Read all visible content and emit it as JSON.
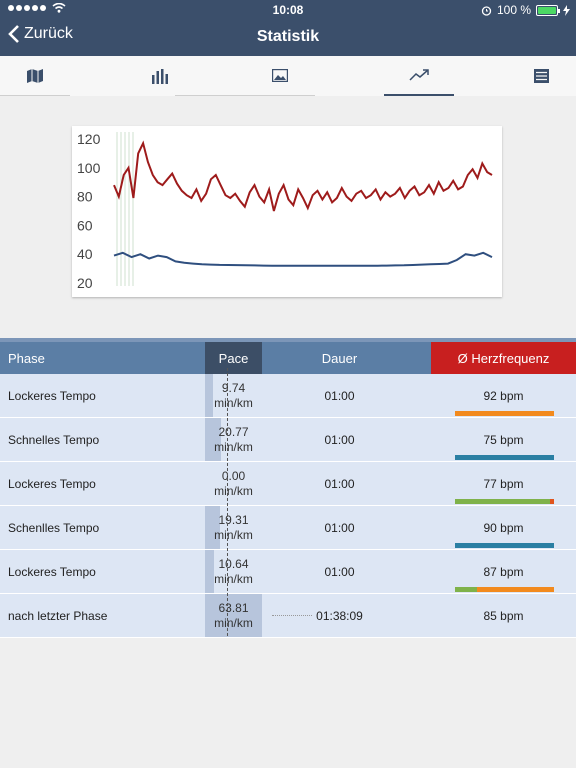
{
  "status_bar": {
    "time": "10:08",
    "battery": "100 %"
  },
  "nav": {
    "back_label": "Zurück",
    "title": "Statistik"
  },
  "tabs": [
    {
      "icon": "map-icon"
    },
    {
      "icon": "bar-chart-icon"
    },
    {
      "icon": "image-icon"
    },
    {
      "icon": "trend-line-icon",
      "active": true
    },
    {
      "icon": "list-icon"
    }
  ],
  "chart_data": {
    "type": "line",
    "y_ticks": [
      "120",
      "100",
      "80",
      "60",
      "40",
      "20"
    ],
    "ylim": [
      20,
      120
    ],
    "series": [
      {
        "color": "#9e1b1b",
        "values": [
          88,
          80,
          95,
          100,
          79,
          110,
          117,
          104,
          95,
          90,
          88,
          92,
          96,
          89,
          84,
          81,
          79,
          85,
          77,
          82,
          92,
          95,
          88,
          81,
          79,
          82,
          77,
          73,
          83,
          88,
          80,
          76,
          85,
          70,
          82,
          88,
          78,
          74,
          85,
          79,
          72,
          81,
          84,
          78,
          83,
          76,
          79,
          86,
          80,
          77,
          82,
          84,
          79,
          81,
          85,
          78,
          83,
          80,
          82,
          86,
          79,
          84,
          87,
          81,
          83,
          88,
          82,
          90,
          84,
          86,
          91,
          85,
          87,
          95,
          99,
          93,
          103,
          97,
          95
        ]
      },
      {
        "color": "#2f4f7f",
        "values": [
          39,
          41,
          38,
          40,
          37,
          39,
          38,
          35,
          34,
          33.5,
          33,
          32.8,
          32.6,
          32.5,
          32.4,
          32.3,
          32.2,
          32.1,
          32,
          32,
          32,
          32,
          32,
          32,
          32,
          32,
          32,
          32,
          32,
          32,
          32,
          32.1,
          32.2,
          32.3,
          32.5,
          32.8,
          33,
          33.2,
          33.5,
          36,
          40,
          39,
          41,
          38
        ]
      }
    ]
  },
  "table": {
    "headers": {
      "phase": "Phase",
      "pace": "Pace",
      "dauer": "Dauer",
      "hr": "Ø Herzfrequenz"
    },
    "rows": [
      {
        "phase": "Lockeres Tempo",
        "pace_value": "9.74",
        "pace_unit": "min/km",
        "pace_fill": 0.14,
        "dauer": "01:00",
        "hr": "92 bpm",
        "hr_colors": [
          {
            "c": "#f28a1e",
            "w": 1.0
          }
        ]
      },
      {
        "phase": "Schnelles Tempo",
        "pace_value": "20.77",
        "pace_unit": "min/km",
        "pace_fill": 0.28,
        "dauer": "01:00",
        "hr": "75 bpm",
        "hr_colors": [
          {
            "c": "#2a7fa3",
            "w": 1.0
          }
        ]
      },
      {
        "phase": "Lockeres Tempo",
        "pace_value": "0.00",
        "pace_unit": "min/km",
        "pace_fill": 0.0,
        "dauer": "01:00",
        "hr": "77 bpm",
        "hr_colors": [
          {
            "c": "#7fb24a",
            "w": 0.96
          },
          {
            "c": "#e0551e",
            "w": 0.04
          }
        ]
      },
      {
        "phase": "Schenlles Tempo",
        "pace_value": "19.31",
        "pace_unit": "min/km",
        "pace_fill": 0.27,
        "dauer": "01:00",
        "hr": "90 bpm",
        "hr_colors": [
          {
            "c": "#2a7fa3",
            "w": 1.0
          }
        ]
      },
      {
        "phase": "Lockeres Tempo",
        "pace_value": "10.64",
        "pace_unit": "min/km",
        "pace_fill": 0.16,
        "dauer": "01:00",
        "hr": "87 bpm",
        "hr_colors": [
          {
            "c": "#7fb24a",
            "w": 0.22
          },
          {
            "c": "#f28a1e",
            "w": 0.78
          }
        ]
      },
      {
        "phase": "nach letzter Phase",
        "pace_value": "63.81",
        "pace_unit": "min/km",
        "pace_fill": 1.0,
        "dauer": "01:38:09",
        "hr": "85 bpm",
        "hr_colors": []
      }
    ]
  }
}
